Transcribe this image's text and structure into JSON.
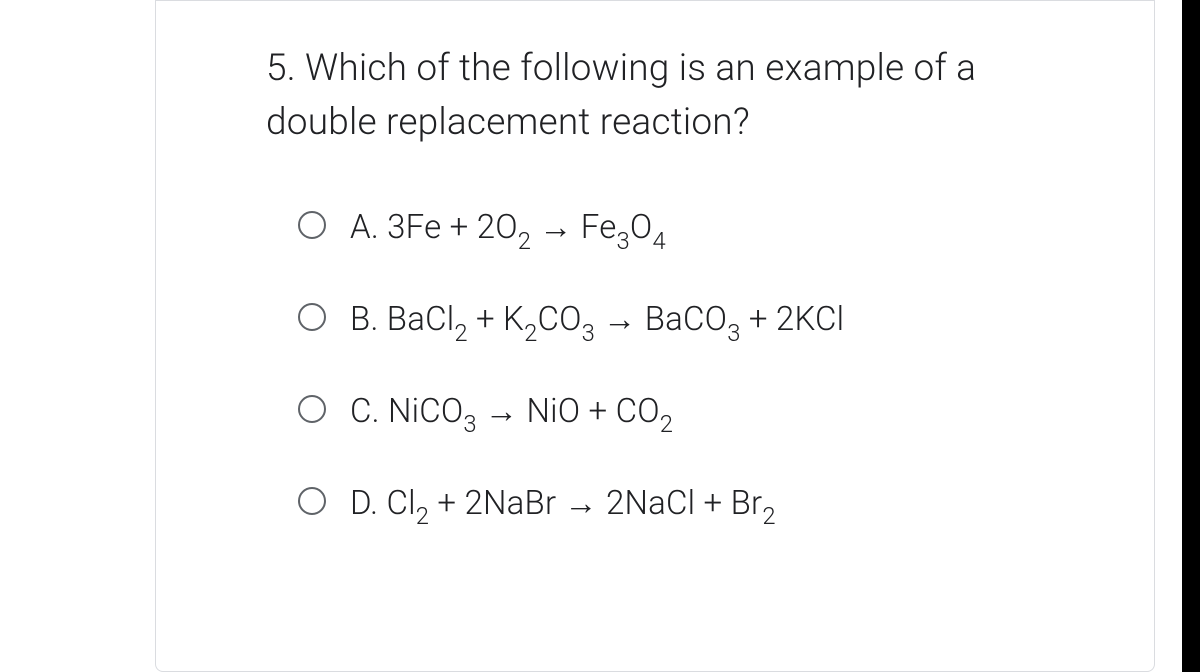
{
  "question": {
    "number": "5.",
    "text": "Which of the following is an example of a double replacement reaction?"
  },
  "options": [
    {
      "letter": "A.",
      "parts": [
        {
          "t": "3Fe + 2O"
        },
        {
          "t": "2",
          "sub": true
        },
        {
          "t": " → Fe"
        },
        {
          "t": "3",
          "sub": true
        },
        {
          "t": "O"
        },
        {
          "t": "4",
          "sub": true
        }
      ]
    },
    {
      "letter": "B.",
      "parts": [
        {
          "t": "BaCl"
        },
        {
          "t": "2",
          "sub": true
        },
        {
          "t": " + K"
        },
        {
          "t": "2",
          "sub": true
        },
        {
          "t": "CO"
        },
        {
          "t": "3",
          "sub": true
        },
        {
          "t": " → BaCO"
        },
        {
          "t": "3",
          "sub": true
        },
        {
          "t": " + 2KCl"
        }
      ]
    },
    {
      "letter": "C.",
      "parts": [
        {
          "t": "NiCO"
        },
        {
          "t": "3",
          "sub": true
        },
        {
          "t": " → NiO + CO"
        },
        {
          "t": "2",
          "sub": true
        }
      ]
    },
    {
      "letter": "D.",
      "parts": [
        {
          "t": "Cl"
        },
        {
          "t": "2",
          "sub": true
        },
        {
          "t": " + 2NaBr → 2NaCl + Br"
        },
        {
          "t": "2",
          "sub": true
        }
      ]
    }
  ],
  "style": {
    "card_border_color": "#dadce0",
    "text_color": "#202124",
    "radio_border_color": "#5f6368",
    "background": "#ffffff",
    "right_bar_color": "#000000",
    "question_fontsize": 37,
    "option_fontsize": 33
  }
}
